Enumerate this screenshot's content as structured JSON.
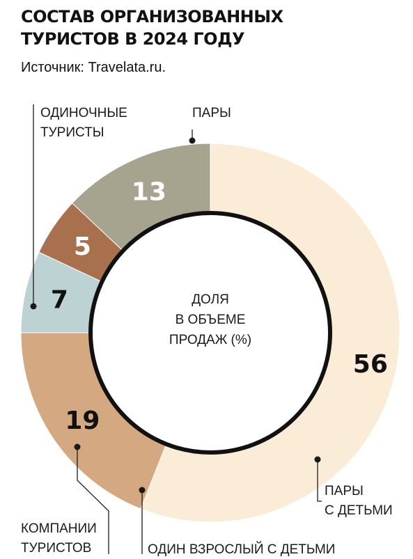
{
  "header": {
    "title_line1": "СОСТАВ ОРГАНИЗОВАННЫХ",
    "title_line2": "ТУРИСТОВ В 2024 ГОДУ",
    "source": "Источник: Travelata.ru."
  },
  "chart_data": {
    "type": "pie",
    "title": "СОСТАВ ОРГАНИЗОВАННЫХ ТУРИСТОВ В 2024 ГОДУ",
    "center_label": [
      "ДОЛЯ",
      "В ОБЪЕМЕ",
      "ПРОДАЖ (%)"
    ],
    "slices": [
      {
        "label_lines": [
          "ПАРЫ"
        ],
        "value": 56,
        "color": "#faecd7",
        "value_color": "#111111"
      },
      {
        "label_lines": [
          "ПАРЫ",
          "С ДЕТЬМИ"
        ],
        "value": 19,
        "color": "#d4a881",
        "value_color": "#111111"
      },
      {
        "label_lines": [
          "ОДИН ВЗРОСЛЫЙ С ДЕТЬМИ"
        ],
        "value": 7,
        "color": "#bdd3d3",
        "value_color": "#111111"
      },
      {
        "label_lines": [
          "КОМПАНИИ",
          "ТУРИСТОВ"
        ],
        "value": 5,
        "color": "#a8704d",
        "value_color": "#ffffff"
      },
      {
        "label_lines": [
          "ОДИНОЧНЫЕ",
          "ТУРИСТЫ"
        ],
        "value": 13,
        "color": "#a6a48f",
        "value_color": "#ffffff"
      }
    ]
  }
}
